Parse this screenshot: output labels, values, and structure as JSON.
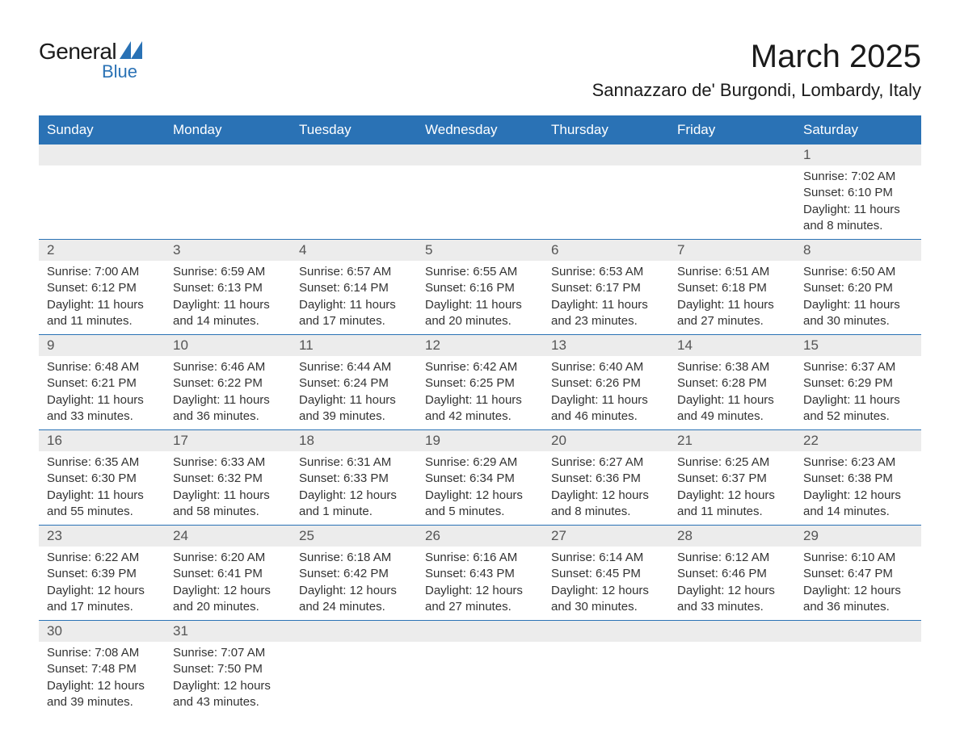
{
  "logo": {
    "text_general": "General",
    "text_blue": "Blue",
    "tri_colors": [
      "#2a72b5",
      "#2a72b5"
    ]
  },
  "title": "March 2025",
  "location": "Sannazzaro de' Burgondi, Lombardy, Italy",
  "colors": {
    "header_bg": "#2a72b5",
    "header_fg": "#ffffff",
    "daynum_bg": "#ececec",
    "daynum_fg": "#555555",
    "text": "#333333",
    "row_border": "#2a72b5"
  },
  "fonts": {
    "title_size_pt": 30,
    "location_size_pt": 17,
    "header_size_pt": 13,
    "daynum_size_pt": 13,
    "info_size_pt": 11
  },
  "weekdays": [
    "Sunday",
    "Monday",
    "Tuesday",
    "Wednesday",
    "Thursday",
    "Friday",
    "Saturday"
  ],
  "weeks": [
    [
      null,
      null,
      null,
      null,
      null,
      null,
      {
        "day": "1",
        "sunrise": "Sunrise: 7:02 AM",
        "sunset": "Sunset: 6:10 PM",
        "daylight": "Daylight: 11 hours and 8 minutes."
      }
    ],
    [
      {
        "day": "2",
        "sunrise": "Sunrise: 7:00 AM",
        "sunset": "Sunset: 6:12 PM",
        "daylight": "Daylight: 11 hours and 11 minutes."
      },
      {
        "day": "3",
        "sunrise": "Sunrise: 6:59 AM",
        "sunset": "Sunset: 6:13 PM",
        "daylight": "Daylight: 11 hours and 14 minutes."
      },
      {
        "day": "4",
        "sunrise": "Sunrise: 6:57 AM",
        "sunset": "Sunset: 6:14 PM",
        "daylight": "Daylight: 11 hours and 17 minutes."
      },
      {
        "day": "5",
        "sunrise": "Sunrise: 6:55 AM",
        "sunset": "Sunset: 6:16 PM",
        "daylight": "Daylight: 11 hours and 20 minutes."
      },
      {
        "day": "6",
        "sunrise": "Sunrise: 6:53 AM",
        "sunset": "Sunset: 6:17 PM",
        "daylight": "Daylight: 11 hours and 23 minutes."
      },
      {
        "day": "7",
        "sunrise": "Sunrise: 6:51 AM",
        "sunset": "Sunset: 6:18 PM",
        "daylight": "Daylight: 11 hours and 27 minutes."
      },
      {
        "day": "8",
        "sunrise": "Sunrise: 6:50 AM",
        "sunset": "Sunset: 6:20 PM",
        "daylight": "Daylight: 11 hours and 30 minutes."
      }
    ],
    [
      {
        "day": "9",
        "sunrise": "Sunrise: 6:48 AM",
        "sunset": "Sunset: 6:21 PM",
        "daylight": "Daylight: 11 hours and 33 minutes."
      },
      {
        "day": "10",
        "sunrise": "Sunrise: 6:46 AM",
        "sunset": "Sunset: 6:22 PM",
        "daylight": "Daylight: 11 hours and 36 minutes."
      },
      {
        "day": "11",
        "sunrise": "Sunrise: 6:44 AM",
        "sunset": "Sunset: 6:24 PM",
        "daylight": "Daylight: 11 hours and 39 minutes."
      },
      {
        "day": "12",
        "sunrise": "Sunrise: 6:42 AM",
        "sunset": "Sunset: 6:25 PM",
        "daylight": "Daylight: 11 hours and 42 minutes."
      },
      {
        "day": "13",
        "sunrise": "Sunrise: 6:40 AM",
        "sunset": "Sunset: 6:26 PM",
        "daylight": "Daylight: 11 hours and 46 minutes."
      },
      {
        "day": "14",
        "sunrise": "Sunrise: 6:38 AM",
        "sunset": "Sunset: 6:28 PM",
        "daylight": "Daylight: 11 hours and 49 minutes."
      },
      {
        "day": "15",
        "sunrise": "Sunrise: 6:37 AM",
        "sunset": "Sunset: 6:29 PM",
        "daylight": "Daylight: 11 hours and 52 minutes."
      }
    ],
    [
      {
        "day": "16",
        "sunrise": "Sunrise: 6:35 AM",
        "sunset": "Sunset: 6:30 PM",
        "daylight": "Daylight: 11 hours and 55 minutes."
      },
      {
        "day": "17",
        "sunrise": "Sunrise: 6:33 AM",
        "sunset": "Sunset: 6:32 PM",
        "daylight": "Daylight: 11 hours and 58 minutes."
      },
      {
        "day": "18",
        "sunrise": "Sunrise: 6:31 AM",
        "sunset": "Sunset: 6:33 PM",
        "daylight": "Daylight: 12 hours and 1 minute."
      },
      {
        "day": "19",
        "sunrise": "Sunrise: 6:29 AM",
        "sunset": "Sunset: 6:34 PM",
        "daylight": "Daylight: 12 hours and 5 minutes."
      },
      {
        "day": "20",
        "sunrise": "Sunrise: 6:27 AM",
        "sunset": "Sunset: 6:36 PM",
        "daylight": "Daylight: 12 hours and 8 minutes."
      },
      {
        "day": "21",
        "sunrise": "Sunrise: 6:25 AM",
        "sunset": "Sunset: 6:37 PM",
        "daylight": "Daylight: 12 hours and 11 minutes."
      },
      {
        "day": "22",
        "sunrise": "Sunrise: 6:23 AM",
        "sunset": "Sunset: 6:38 PM",
        "daylight": "Daylight: 12 hours and 14 minutes."
      }
    ],
    [
      {
        "day": "23",
        "sunrise": "Sunrise: 6:22 AM",
        "sunset": "Sunset: 6:39 PM",
        "daylight": "Daylight: 12 hours and 17 minutes."
      },
      {
        "day": "24",
        "sunrise": "Sunrise: 6:20 AM",
        "sunset": "Sunset: 6:41 PM",
        "daylight": "Daylight: 12 hours and 20 minutes."
      },
      {
        "day": "25",
        "sunrise": "Sunrise: 6:18 AM",
        "sunset": "Sunset: 6:42 PM",
        "daylight": "Daylight: 12 hours and 24 minutes."
      },
      {
        "day": "26",
        "sunrise": "Sunrise: 6:16 AM",
        "sunset": "Sunset: 6:43 PM",
        "daylight": "Daylight: 12 hours and 27 minutes."
      },
      {
        "day": "27",
        "sunrise": "Sunrise: 6:14 AM",
        "sunset": "Sunset: 6:45 PM",
        "daylight": "Daylight: 12 hours and 30 minutes."
      },
      {
        "day": "28",
        "sunrise": "Sunrise: 6:12 AM",
        "sunset": "Sunset: 6:46 PM",
        "daylight": "Daylight: 12 hours and 33 minutes."
      },
      {
        "day": "29",
        "sunrise": "Sunrise: 6:10 AM",
        "sunset": "Sunset: 6:47 PM",
        "daylight": "Daylight: 12 hours and 36 minutes."
      }
    ],
    [
      {
        "day": "30",
        "sunrise": "Sunrise: 7:08 AM",
        "sunset": "Sunset: 7:48 PM",
        "daylight": "Daylight: 12 hours and 39 minutes."
      },
      {
        "day": "31",
        "sunrise": "Sunrise: 7:07 AM",
        "sunset": "Sunset: 7:50 PM",
        "daylight": "Daylight: 12 hours and 43 minutes."
      },
      null,
      null,
      null,
      null,
      null
    ]
  ]
}
